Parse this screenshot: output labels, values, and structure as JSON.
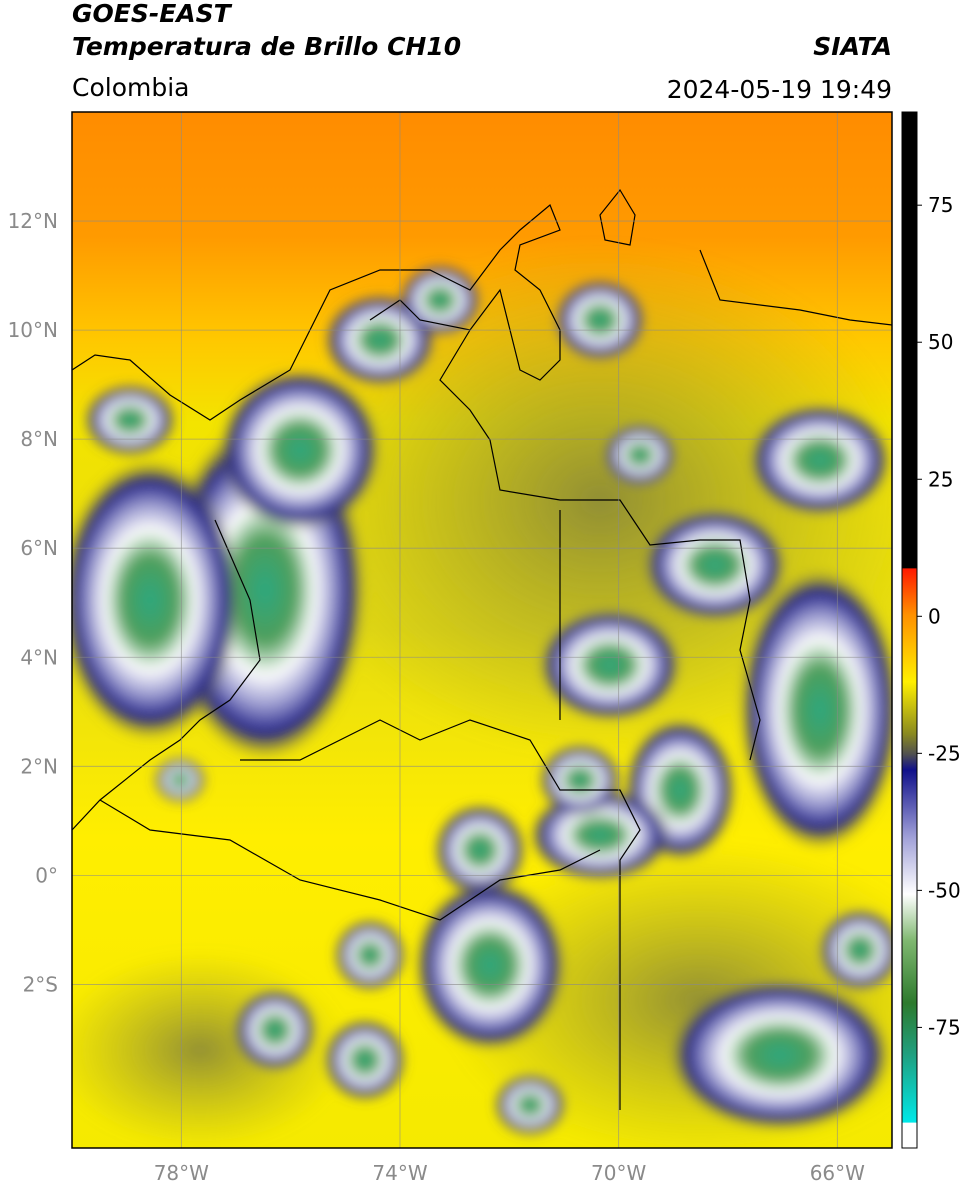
{
  "chart_data": {
    "type": "map",
    "title": "GOES-EAST",
    "subtitle": "Temperatura de Brillo CH10",
    "region": "Colombia",
    "source": "SIATA",
    "datetime": "2024-05-19 19:49",
    "xlim": [
      -80,
      -65
    ],
    "ylim": [
      -5,
      14
    ],
    "xticks": [
      {
        "value": -78,
        "label": "78°W"
      },
      {
        "value": -74,
        "label": "74°W"
      },
      {
        "value": -70,
        "label": "70°W"
      },
      {
        "value": -66,
        "label": "66°W"
      }
    ],
    "yticks": [
      {
        "value": 12,
        "label": "12°N"
      },
      {
        "value": 10,
        "label": "10°N"
      },
      {
        "value": 8,
        "label": "8°N"
      },
      {
        "value": 6,
        "label": "6°N"
      },
      {
        "value": 4,
        "label": "4°N"
      },
      {
        "value": 2,
        "label": "2°N"
      },
      {
        "value": 0,
        "label": "0°"
      },
      {
        "value": -2,
        "label": "2°S"
      }
    ],
    "grid": true,
    "colorbar": {
      "lim": [
        -97,
        92
      ],
      "ticks": [
        75,
        50,
        25,
        0,
        -25,
        -50,
        -75
      ]
    }
  }
}
